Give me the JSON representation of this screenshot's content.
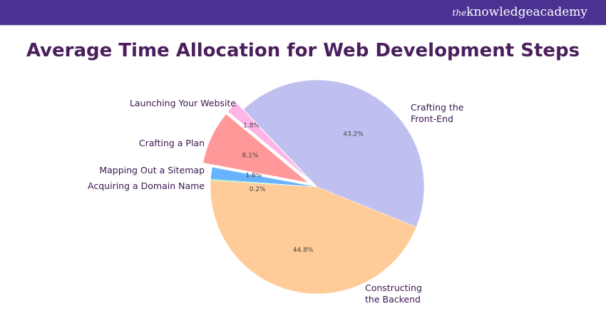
{
  "brand": {
    "prefix": "the",
    "name": "knowledgeacademy"
  },
  "chart_data": {
    "type": "pie",
    "title": "Average Time Allocation for Web Development Steps",
    "start_angle_deg": 22,
    "slices": [
      {
        "label": "Constructing the Backend",
        "lines": [
          "Constructing",
          "the Backend"
        ],
        "value": 44.8,
        "pct_label": "44.8%",
        "color": "#ffcc99",
        "explode": false
      },
      {
        "label": "Acquiring a Domain Name",
        "lines": [
          "Acquiring a Domain Name"
        ],
        "value": 0.2,
        "pct_label": "0.2%",
        "color": "#99e699",
        "explode": false
      },
      {
        "label": "Mapping Out a Sitemap",
        "lines": [
          "Mapping Out a Sitemap"
        ],
        "value": 1.8,
        "pct_label": "1.8%",
        "color": "#66b3ff",
        "explode": false
      },
      {
        "label": "Crafting a Plan",
        "lines": [
          "Crafting a Plan"
        ],
        "value": 8.1,
        "pct_label": "8.1%",
        "color": "#ff9999",
        "explode": true
      },
      {
        "label": "Launching Your Website",
        "lines": [
          "Launching Your Website"
        ],
        "value": 1.8,
        "pct_label": "1.8%",
        "color": "#ffb3e6",
        "explode": true
      },
      {
        "label": "Crafting the Front-End",
        "lines": [
          "Crafting the",
          "Front-End"
        ],
        "value": 43.2,
        "pct_label": "43.2%",
        "color": "#c0c0f0",
        "explode": false
      }
    ]
  }
}
